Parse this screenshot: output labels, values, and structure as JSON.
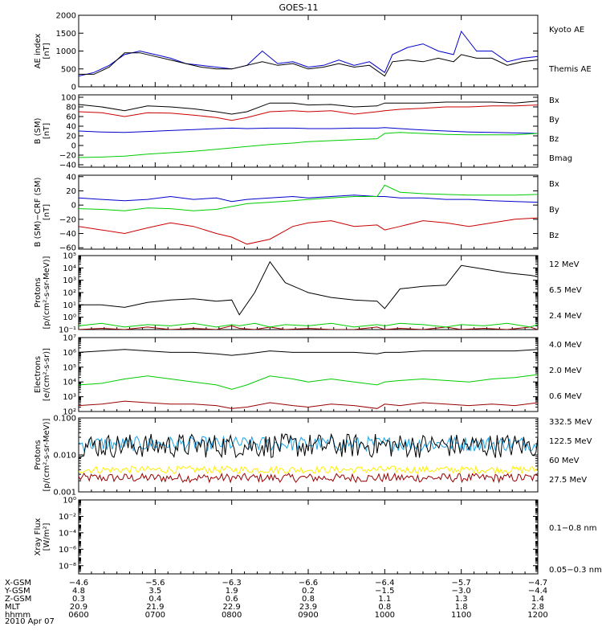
{
  "figure": {
    "title": "GOES-11",
    "date": "2010 Apr 07"
  },
  "colors": {
    "black": "#000000",
    "red": "#cc0000",
    "green": "#00cc00",
    "blue": "#0000cc",
    "darkred": "#990000",
    "yellow": "#ffee00",
    "cyan": "#1aa3e6"
  },
  "chart_data": [
    {
      "type": "line",
      "panel": "ae",
      "ylabel": [
        "AE index",
        "[nT]"
      ],
      "ylim": [
        0,
        2000
      ],
      "scale": "linear",
      "yticks": [
        "0",
        "500",
        "1000",
        "1500",
        "2000"
      ],
      "ytick_values": [
        0,
        500,
        1000,
        1500,
        2000
      ],
      "x_hours": [
        6.0,
        6.2,
        6.4,
        6.6,
        6.8,
        7.0,
        7.2,
        7.4,
        7.6,
        7.8,
        8.0,
        8.2,
        8.4,
        8.6,
        8.8,
        9.0,
        9.2,
        9.4,
        9.6,
        9.8,
        10.0,
        10.1,
        10.3,
        10.5,
        10.7,
        10.9,
        11.0,
        11.2,
        11.4,
        11.6,
        11.8,
        12.0
      ],
      "series": [
        {
          "name": "Kyoto AE",
          "color": "blue",
          "values": [
            300,
            400,
            600,
            900,
            1000,
            900,
            800,
            650,
            600,
            550,
            500,
            600,
            1000,
            650,
            700,
            550,
            600,
            750,
            600,
            700,
            400,
            900,
            1100,
            1200,
            1000,
            900,
            1550,
            1000,
            1000,
            700,
            800,
            850
          ]
        },
        {
          "name": "Themis AE",
          "color": "black",
          "values": [
            350,
            350,
            550,
            950,
            950,
            850,
            750,
            650,
            550,
            500,
            500,
            600,
            700,
            600,
            650,
            500,
            550,
            650,
            550,
            600,
            300,
            700,
            750,
            700,
            800,
            700,
            900,
            800,
            800,
            600,
            700,
            750
          ]
        }
      ]
    },
    {
      "type": "line",
      "panel": "bsm",
      "ylabel": [
        "B (SM)",
        "[nT]"
      ],
      "ylim": [
        -45,
        105
      ],
      "scale": "linear",
      "yticks": [
        "100",
        "80",
        "60",
        "40",
        "20",
        "0",
        "−20",
        "−40"
      ],
      "ytick_values": [
        100,
        80,
        60,
        40,
        20,
        0,
        -20,
        -40
      ],
      "x_hours": [
        6.0,
        6.3,
        6.6,
        6.9,
        7.2,
        7.5,
        7.8,
        8.0,
        8.2,
        8.5,
        8.8,
        9.0,
        9.3,
        9.6,
        9.9,
        10.0,
        10.2,
        10.5,
        10.8,
        11.1,
        11.4,
        11.7,
        12.0
      ],
      "series": [
        {
          "name": "Bx",
          "color": "blue",
          "values": [
            30,
            28,
            27,
            29,
            31,
            33,
            35,
            36,
            35,
            36,
            36,
            35,
            35,
            36,
            36,
            37,
            35,
            32,
            30,
            28,
            27,
            26,
            25
          ]
        },
        {
          "name": "By",
          "color": "green",
          "values": [
            -25,
            -24,
            -22,
            -18,
            -15,
            -12,
            -8,
            -5,
            -2,
            2,
            5,
            8,
            10,
            12,
            14,
            25,
            27,
            25,
            23,
            22,
            22,
            22,
            25
          ]
        },
        {
          "name": "Bz",
          "color": "red",
          "values": [
            70,
            68,
            60,
            68,
            67,
            63,
            58,
            52,
            58,
            70,
            72,
            70,
            72,
            65,
            70,
            72,
            75,
            77,
            80,
            80,
            82,
            82,
            84
          ]
        },
        {
          "name": "Bmag",
          "color": "black",
          "values": [
            85,
            80,
            72,
            82,
            80,
            76,
            70,
            65,
            70,
            88,
            88,
            84,
            85,
            80,
            82,
            88,
            88,
            88,
            90,
            90,
            90,
            88,
            92
          ]
        }
      ]
    },
    {
      "type": "line",
      "panel": "bdiff",
      "ylabel": [
        "B (SM)−CRF (SM)",
        "[nT]"
      ],
      "ylim": [
        -62,
        42
      ],
      "scale": "linear",
      "yticks": [
        "40",
        "20",
        "0",
        "−20",
        "−40",
        "−60"
      ],
      "ytick_values": [
        40,
        20,
        0,
        -20,
        -40,
        -60
      ],
      "x_hours": [
        6.0,
        6.3,
        6.6,
        6.9,
        7.2,
        7.5,
        7.8,
        8.0,
        8.2,
        8.5,
        8.8,
        9.0,
        9.3,
        9.6,
        9.9,
        10.0,
        10.2,
        10.5,
        10.8,
        11.1,
        11.4,
        11.7,
        12.0
      ],
      "series": [
        {
          "name": "Bx",
          "color": "blue",
          "values": [
            10,
            8,
            6,
            8,
            12,
            8,
            10,
            5,
            8,
            10,
            12,
            10,
            12,
            14,
            12,
            12,
            10,
            10,
            8,
            8,
            6,
            5,
            4
          ]
        },
        {
          "name": "By",
          "color": "green",
          "values": [
            -5,
            -6,
            -8,
            -4,
            -5,
            -8,
            -6,
            -2,
            2,
            4,
            6,
            8,
            10,
            12,
            12,
            28,
            18,
            16,
            15,
            14,
            14,
            14,
            15
          ]
        },
        {
          "name": "Bz",
          "color": "red",
          "values": [
            -30,
            -35,
            -40,
            -32,
            -25,
            -30,
            -40,
            -45,
            -55,
            -48,
            -30,
            -25,
            -22,
            -30,
            -28,
            -35,
            -30,
            -22,
            -25,
            -30,
            -25,
            -20,
            -18
          ]
        }
      ]
    },
    {
      "type": "line",
      "panel": "protons",
      "ylabel": [
        "Protons",
        "[p/(cm²-s-sr-MeV)]"
      ],
      "ylim_log10": [
        -1,
        5
      ],
      "scale": "log",
      "yticks": [
        "10⁻¹",
        "10⁰",
        "10¹",
        "10²",
        "10³",
        "10⁴",
        "10⁵"
      ],
      "ytick_values": [
        -1,
        0,
        1,
        2,
        3,
        4,
        5
      ],
      "x_hours": [
        6.0,
        6.3,
        6.6,
        6.9,
        7.2,
        7.5,
        7.8,
        8.0,
        8.1,
        8.3,
        8.5,
        8.7,
        9.0,
        9.3,
        9.6,
        9.9,
        10.0,
        10.2,
        10.5,
        10.8,
        11.0,
        11.3,
        11.6,
        11.9,
        12.0
      ],
      "series": [
        {
          "name": "12 MeV",
          "color": "darkred",
          "values_log10": [
            -1,
            -0.9,
            -1,
            -0.8,
            -1,
            -0.9,
            -1,
            -0.7,
            -0.9,
            -1,
            -0.8,
            -1,
            -0.9,
            -1,
            -1,
            -0.8,
            -1,
            -0.9,
            -1,
            -0.8,
            -1,
            -0.9,
            -1,
            -0.8,
            -1
          ]
        },
        {
          "name": "6.5 MeV",
          "color": "green",
          "values_log10": [
            -0.7,
            -0.5,
            -0.8,
            -0.6,
            -0.7,
            -0.5,
            -0.8,
            -0.6,
            -0.7,
            -0.5,
            -0.8,
            -0.6,
            -0.7,
            -0.5,
            -0.8,
            -0.6,
            -0.7,
            -0.5,
            -0.6,
            -0.8,
            -0.6,
            -0.7,
            -0.5,
            -0.8,
            -0.6
          ]
        },
        {
          "name": "2.4 MeV",
          "color": "black",
          "values_log10": [
            1.0,
            1.0,
            0.8,
            1.2,
            1.4,
            1.5,
            1.3,
            1.4,
            0.2,
            2.0,
            4.5,
            2.8,
            2.0,
            1.6,
            1.4,
            1.3,
            0.7,
            2.3,
            2.5,
            2.6,
            4.2,
            3.9,
            3.6,
            3.4,
            3.3
          ]
        }
      ]
    },
    {
      "type": "line",
      "panel": "electrons",
      "ylabel": [
        "Electrons",
        "[e/(cm²-s-sr)]"
      ],
      "ylim_log10": [
        2,
        7
      ],
      "scale": "log",
      "yticks": [
        "10²",
        "10³",
        "10⁴",
        "10⁵",
        "10⁶",
        "10⁷"
      ],
      "ytick_values": [
        2,
        3,
        4,
        5,
        6,
        7
      ],
      "x_hours": [
        6.0,
        6.3,
        6.6,
        6.9,
        7.2,
        7.5,
        7.8,
        8.0,
        8.2,
        8.5,
        8.8,
        9.0,
        9.3,
        9.6,
        9.9,
        10.0,
        10.2,
        10.5,
        10.8,
        11.1,
        11.4,
        11.7,
        12.0
      ],
      "series": [
        {
          "name": "4.0 MeV",
          "color": "darkred",
          "values_log10": [
            2.4,
            2.5,
            2.7,
            2.6,
            2.5,
            2.5,
            2.4,
            2.2,
            2.3,
            2.6,
            2.4,
            2.3,
            2.5,
            2.4,
            2.2,
            2.5,
            2.4,
            2.6,
            2.5,
            2.4,
            2.5,
            2.4,
            2.6
          ]
        },
        {
          "name": "2.0 MeV",
          "color": "green",
          "values_log10": [
            3.8,
            3.9,
            4.2,
            4.4,
            4.2,
            4.0,
            3.8,
            3.5,
            3.8,
            4.4,
            4.2,
            4.0,
            4.2,
            4.0,
            3.8,
            4.0,
            4.1,
            4.2,
            4.1,
            4.0,
            4.2,
            4.3,
            4.5
          ]
        },
        {
          "name": "0.6 MeV",
          "color": "black",
          "values_log10": [
            6.0,
            6.1,
            6.2,
            6.1,
            6.0,
            6.0,
            5.9,
            5.8,
            5.9,
            6.1,
            6.0,
            6.0,
            6.0,
            6.0,
            5.9,
            6.0,
            6.0,
            6.1,
            6.1,
            6.1,
            6.1,
            6.1,
            6.2
          ]
        }
      ]
    },
    {
      "type": "line",
      "panel": "hiprotons",
      "ylabel": [
        "Protons",
        "[p/(cm²-s-sr-MeV)]"
      ],
      "ylim": [
        0.001,
        0.1
      ],
      "scale": "log",
      "yticks": [
        "0.001",
        "0.010",
        "0.100"
      ],
      "ytick_values": [
        -3,
        -2,
        -1
      ],
      "noise": true,
      "series": [
        {
          "name": "332.5 MeV",
          "color": "darkred",
          "center_log10": -2.62,
          "amp": 0.12
        },
        {
          "name": "122.5 MeV",
          "color": "yellow",
          "center_log10": -2.4,
          "amp": 0.1
        },
        {
          "name": "60 MeV",
          "color": "cyan",
          "center_log10": -1.7,
          "amp": 0.2
        },
        {
          "name": "27.5 MeV",
          "color": "black",
          "center_log10": -1.75,
          "amp": 0.33
        }
      ]
    },
    {
      "type": "line",
      "panel": "xray",
      "ylabel": [
        "Xray Flux",
        "[W/m²]"
      ],
      "ylim_log10": [
        -9,
        0
      ],
      "scale": "log",
      "yticks": [
        "10⁻⁸",
        "10⁻⁶",
        "10⁻⁴",
        "10⁻²",
        "10⁰"
      ],
      "ytick_values": [
        -8,
        -6,
        -4,
        -2,
        0
      ],
      "series": [
        {
          "name": "0.1−0.8 nm",
          "color": "darkred",
          "values_log10": []
        },
        {
          "name": "0.05−0.3 nm",
          "color": "blue",
          "values_log10": []
        }
      ]
    }
  ],
  "xaxis": {
    "rows": [
      {
        "label": "X-GSM",
        "values": [
          "−4.6",
          "−5.6",
          "−6.3",
          "−6.6",
          "−6.4",
          "−5.7",
          "−4.7"
        ]
      },
      {
        "label": "Y-GSM",
        "values": [
          "4.8",
          "3.5",
          "1.9",
          "0.2",
          "−1.5",
          "−3.0",
          "−4.4"
        ]
      },
      {
        "label": "Z-GSM",
        "values": [
          "0.3",
          "0.4",
          "0.6",
          "0.8",
          "1.1",
          "1.3",
          "1.4"
        ]
      },
      {
        "label": "MLT",
        "values": [
          "20.9",
          "21.9",
          "22.9",
          "23.9",
          "0.8",
          "1.8",
          "2.8"
        ]
      },
      {
        "label": "hhmm",
        "values": [
          "0600",
          "0700",
          "0800",
          "0900",
          "1000",
          "1100",
          "1200"
        ]
      }
    ]
  }
}
